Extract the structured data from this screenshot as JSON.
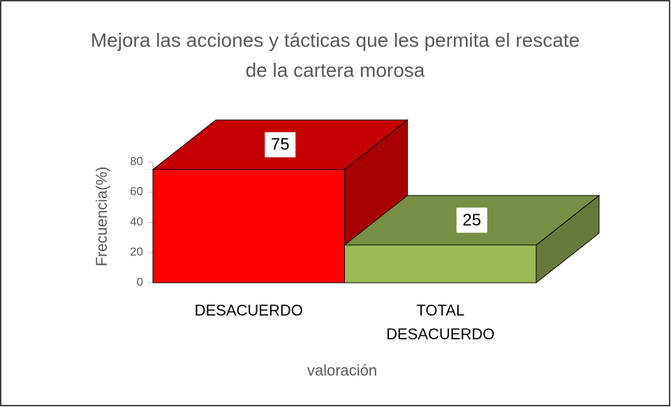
{
  "chart_data": {
    "type": "bar3d",
    "title": "Mejora las acciones y tácticas que les permita el rescate de la cartera morosa",
    "categories": [
      "DESACUERDO",
      "TOTAL DESACUERDO"
    ],
    "values": [
      75,
      25
    ],
    "colors": [
      "#ff0000",
      "#9bbb59"
    ],
    "xlabel": "valoración",
    "ylabel": "Frecuencia(%)",
    "ylim": [
      0,
      80
    ],
    "yticks": [
      0,
      20,
      40,
      60,
      80
    ]
  }
}
